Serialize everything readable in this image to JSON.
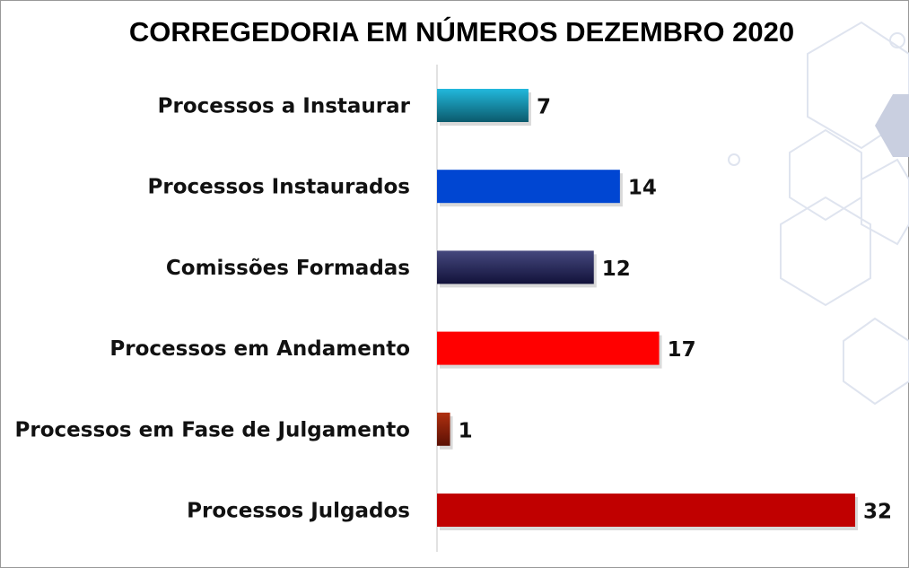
{
  "chart_data": {
    "type": "bar",
    "orientation": "horizontal",
    "title": "CORREGEDORIA EM NÚMEROS DEZEMBRO 2020",
    "categories": [
      "Processos a Instaurar",
      "Processos Instaurados",
      "Comissões Formadas",
      "Processos em Andamento",
      "Processos em Fase de Julgamento",
      "Processos Julgados"
    ],
    "values": [
      7,
      14,
      12,
      17,
      1,
      32
    ],
    "colors": [
      [
        "#22b8dc",
        "#0b5a6c"
      ],
      [
        "#0046d2",
        "#0046d2"
      ],
      [
        "#45487e",
        "#12123a"
      ],
      [
        "#ff0000",
        "#ff0000"
      ],
      [
        "#b03010",
        "#5a1004"
      ],
      [
        "#c00000",
        "#c00000"
      ]
    ],
    "xlim": [
      0,
      32
    ],
    "grid": false,
    "legend": "none",
    "data_labels": true
  }
}
